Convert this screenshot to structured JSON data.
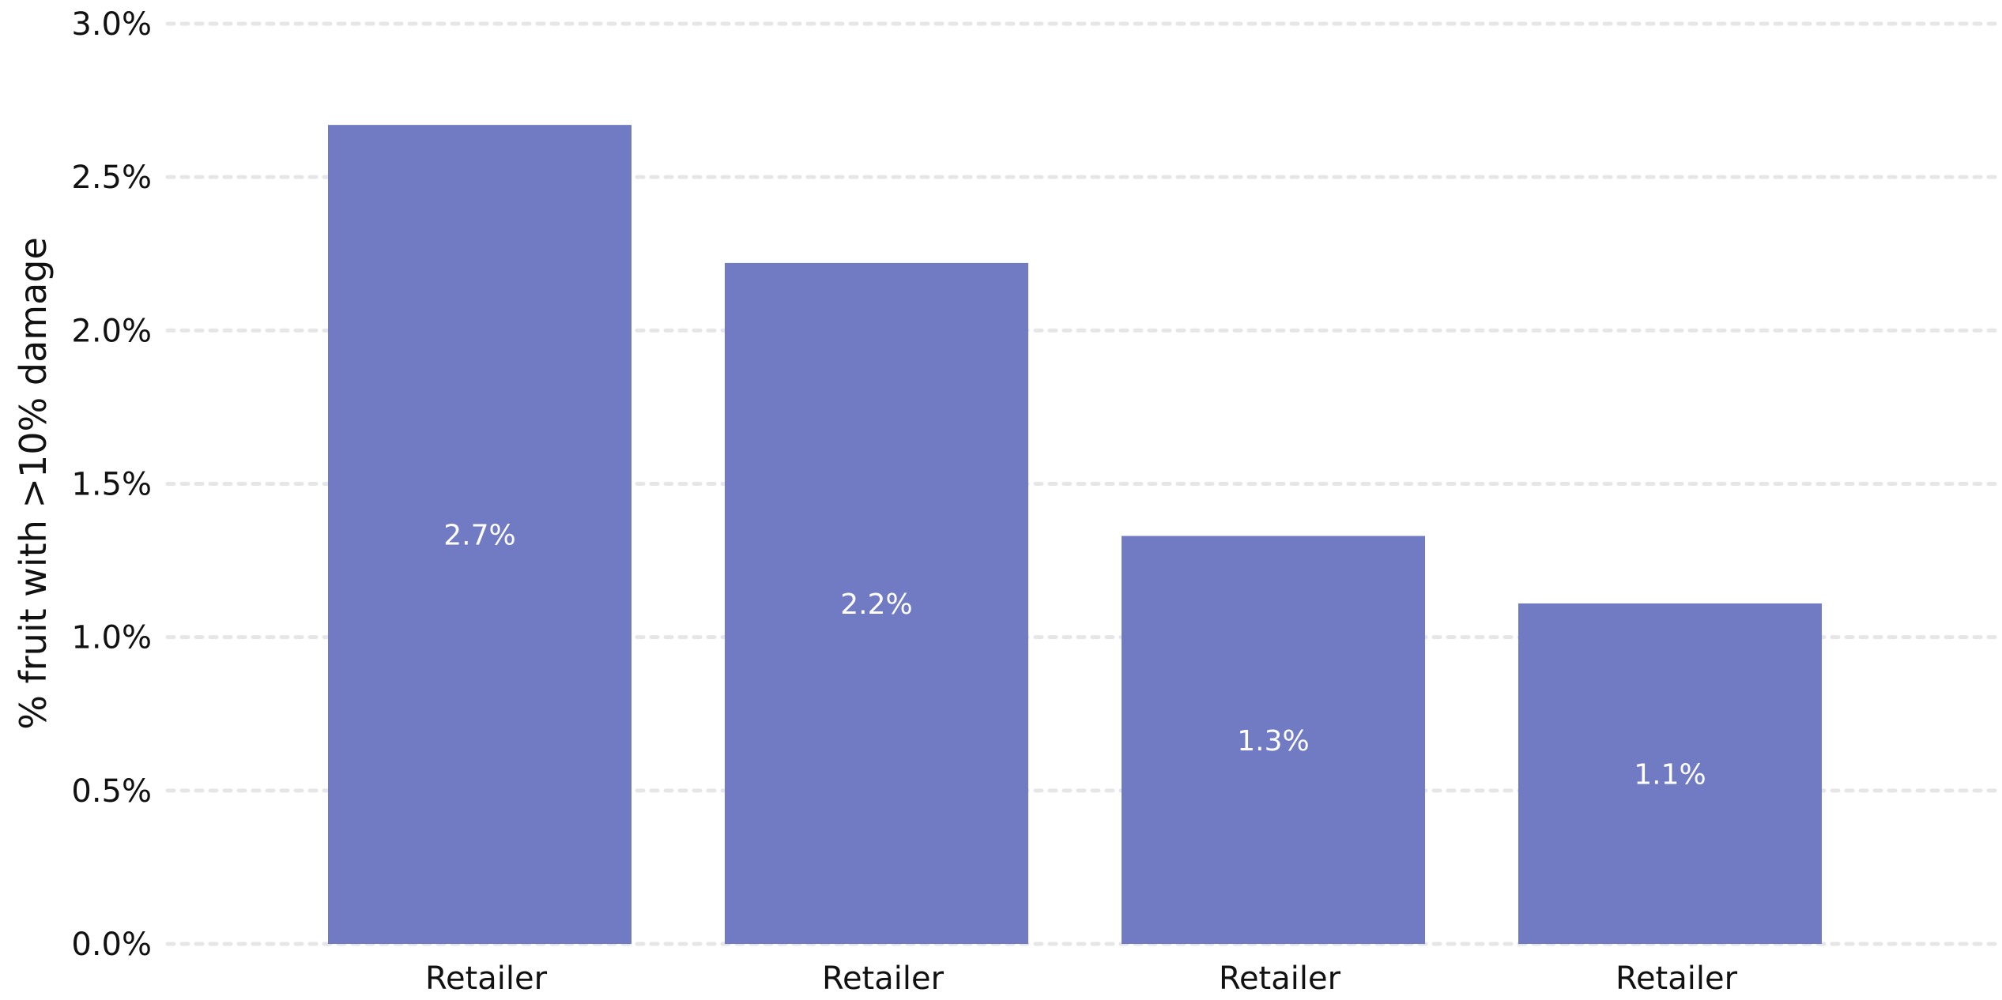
{
  "chart_data": {
    "type": "bar",
    "title": "",
    "xlabel": "",
    "ylabel": "% fruit with >10% damage",
    "categories": [
      "Retailer",
      "Retailer",
      "Retailer",
      "Retailer"
    ],
    "values": [
      2.67,
      2.22,
      1.33,
      1.11
    ],
    "data_labels": [
      "2.7%",
      "2.2%",
      "1.3%",
      "1.1%"
    ],
    "ylim": [
      0,
      3.0
    ],
    "yticks": [
      0,
      0.5,
      1.0,
      1.5,
      2.0,
      2.5,
      3.0
    ],
    "ytick_labels": [
      "0.0%",
      "0.5%",
      "1.0%",
      "1.5%",
      "2.0%",
      "2.5%",
      "3.0%"
    ],
    "grid": true,
    "legend": "none",
    "bar_color": "#717bc4"
  }
}
